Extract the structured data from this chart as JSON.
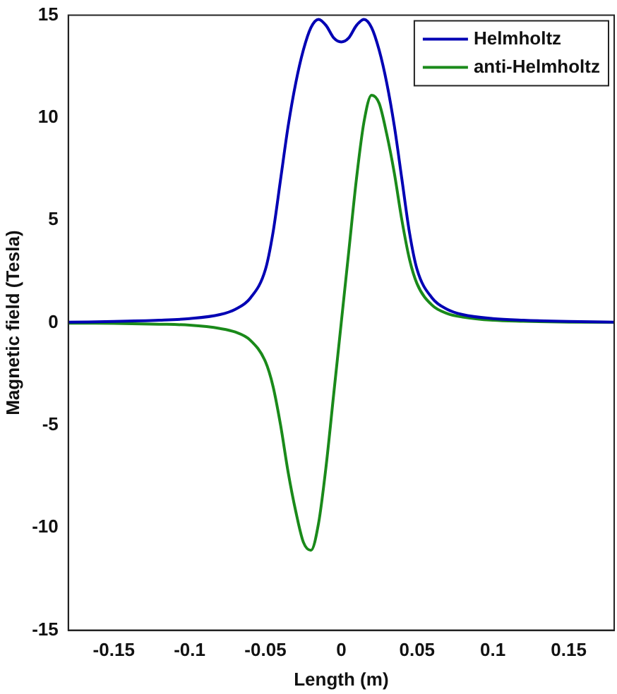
{
  "chart_data": {
    "type": "line",
    "xlabel": "Length (m)",
    "ylabel": "Magnetic field (Tesla)",
    "xlim": [
      -0.18,
      0.18
    ],
    "ylim": [
      -15,
      15
    ],
    "xticks": [
      -0.15,
      -0.1,
      -0.05,
      0,
      0.05,
      0.1,
      0.15
    ],
    "yticks": [
      -15,
      -10,
      -5,
      0,
      5,
      10,
      15
    ],
    "grid": false,
    "legend": "top right",
    "marker": "none",
    "line_style": "solid",
    "series": [
      {
        "name": "Helmholtz",
        "color": "#0000b4",
        "x": [
          -0.18,
          -0.15,
          -0.12,
          -0.1,
          -0.08,
          -0.07,
          -0.06,
          -0.05,
          -0.045,
          -0.04,
          -0.035,
          -0.03,
          -0.025,
          -0.02,
          -0.015,
          -0.01,
          -0.005,
          0,
          0.005,
          0.01,
          0.015,
          0.02,
          0.025,
          0.03,
          0.035,
          0.04,
          0.045,
          0.05,
          0.06,
          0.07,
          0.08,
          0.1,
          0.12,
          0.15,
          0.18
        ],
        "values": [
          0.03,
          0.06,
          0.12,
          0.2,
          0.4,
          0.65,
          1.2,
          2.6,
          4.4,
          7.0,
          9.6,
          11.7,
          13.3,
          14.4,
          14.8,
          14.5,
          13.9,
          13.7,
          13.9,
          14.5,
          14.8,
          14.4,
          13.3,
          11.7,
          9.6,
          7.0,
          4.4,
          2.6,
          1.2,
          0.65,
          0.4,
          0.2,
          0.12,
          0.06,
          0.03
        ]
      },
      {
        "name": "anti-Helmholtz",
        "color": "#1a8a1a",
        "x": [
          -0.18,
          -0.15,
          -0.12,
          -0.1,
          -0.08,
          -0.07,
          -0.06,
          -0.05,
          -0.045,
          -0.04,
          -0.035,
          -0.03,
          -0.025,
          -0.02,
          -0.015,
          -0.01,
          -0.005,
          0,
          0.005,
          0.01,
          0.015,
          0.02,
          0.025,
          0.03,
          0.035,
          0.04,
          0.045,
          0.05,
          0.06,
          0.07,
          0.08,
          0.1,
          0.12,
          0.15,
          0.18
        ],
        "values": [
          -0.02,
          -0.03,
          -0.07,
          -0.12,
          -0.28,
          -0.45,
          -0.85,
          -1.9,
          -3.1,
          -5.0,
          -7.3,
          -9.2,
          -10.7,
          -11.1,
          -9.8,
          -7.0,
          -3.5,
          0,
          3.5,
          7.0,
          9.8,
          11.1,
          10.7,
          9.2,
          7.3,
          5.0,
          3.1,
          1.9,
          0.85,
          0.45,
          0.28,
          0.12,
          0.07,
          0.03,
          0.02
        ]
      }
    ]
  }
}
